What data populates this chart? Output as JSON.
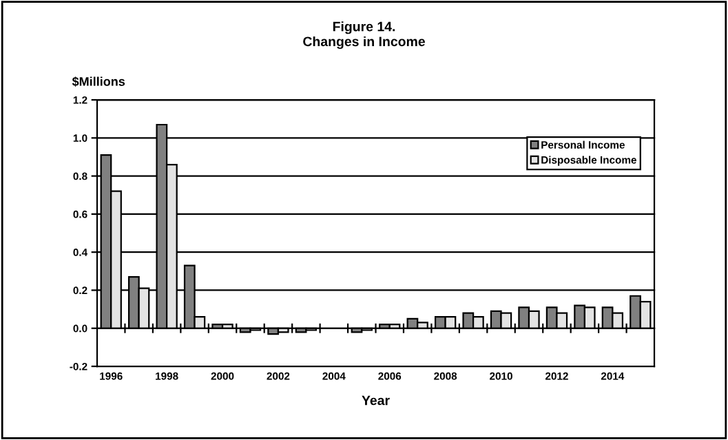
{
  "chart_data": {
    "type": "bar",
    "title": "Figure 14.",
    "subtitle": "Changes in Income",
    "xlabel": "Year",
    "ylabel": "$Millions",
    "categories": [
      "1996",
      null,
      "1998",
      null,
      "2000",
      null,
      "2002",
      null,
      "2004",
      null,
      "2006",
      null,
      "2008",
      null,
      "2010",
      null,
      "2012",
      null,
      "2014",
      null
    ],
    "series": [
      {
        "name": "Personal Income",
        "color": "#808080",
        "values": [
          0.91,
          0.27,
          1.07,
          0.33,
          0.02,
          -0.02,
          -0.03,
          -0.02,
          null,
          -0.02,
          0.02,
          0.05,
          0.06,
          0.08,
          0.09,
          0.11,
          0.11,
          0.12,
          0.11,
          0.17
        ]
      },
      {
        "name": "Disposable Income",
        "color": "#e3e3e3",
        "values": [
          0.72,
          0.21,
          0.86,
          0.06,
          0.02,
          -0.01,
          -0.02,
          -0.01,
          null,
          -0.01,
          0.02,
          0.03,
          0.06,
          0.06,
          0.08,
          0.09,
          0.08,
          0.11,
          0.08,
          0.14
        ]
      }
    ],
    "ylim": [
      -0.2,
      1.2
    ],
    "yticks": [
      -0.2,
      {
        "value": 0,
        "label": "0.0"
      },
      0.2,
      0.4,
      0.6,
      0.8,
      {
        "value": 1,
        "label": "1.0"
      },
      1.2
    ],
    "grid": "y",
    "legend": "top right"
  }
}
